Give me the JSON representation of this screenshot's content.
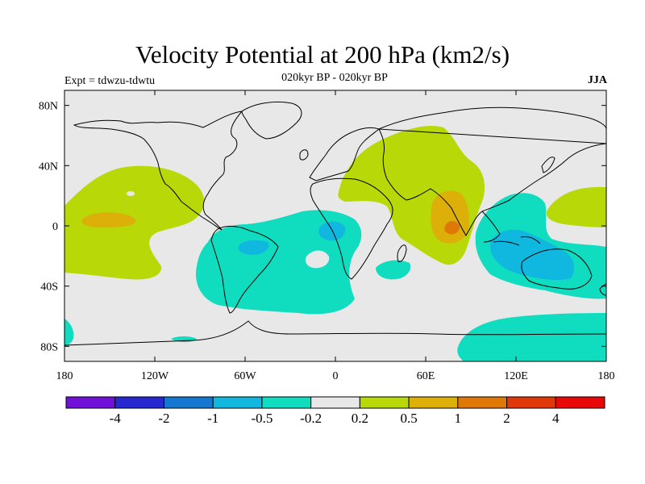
{
  "header": {
    "title": "Velocity Potential at 200 hPa (km2/s)",
    "experiment": "Expt = tdwzu-tdwtu",
    "subtitle": "020kyr BP - 020kyr BP",
    "season": "JJA"
  },
  "map": {
    "projection": "cylindrical-equidistant",
    "lon_range": [
      -180,
      180
    ],
    "lat_range": [
      -90,
      90
    ],
    "background_color": "#e8e8e8",
    "lon_ticks": [
      {
        "value": -180,
        "label": "180"
      },
      {
        "value": -120,
        "label": "120W"
      },
      {
        "value": -60,
        "label": "60W"
      },
      {
        "value": 0,
        "label": "0"
      },
      {
        "value": 60,
        "label": "60E"
      },
      {
        "value": 120,
        "label": "120E"
      },
      {
        "value": 180,
        "label": "180"
      }
    ],
    "lat_ticks": [
      {
        "value": 80,
        "label": "80N"
      },
      {
        "value": 40,
        "label": "40N"
      },
      {
        "value": 0,
        "label": "0"
      },
      {
        "value": -40,
        "label": "40S"
      },
      {
        "value": -80,
        "label": "80S"
      }
    ]
  },
  "colorbar": {
    "colors": [
      "#7010d8",
      "#2828d0",
      "#1478d0",
      "#10b8e0",
      "#10dcc0",
      "#e8e8e8",
      "#b8d808",
      "#dcb008",
      "#e07808",
      "#e03808",
      "#e80808"
    ],
    "labels": [
      "-4",
      "-2",
      "-1",
      "-0.5",
      "-0.2",
      "0.2",
      "0.5",
      "1",
      "2",
      "4"
    ]
  }
}
